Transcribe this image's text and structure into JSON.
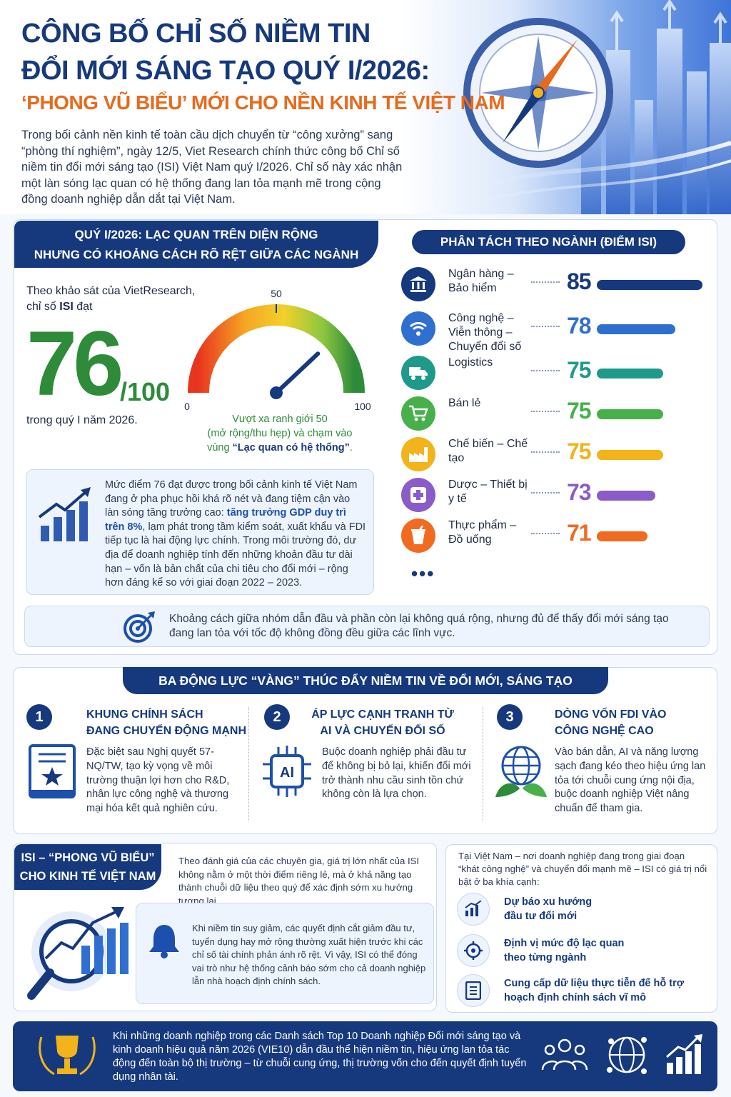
{
  "header": {
    "title_line1": "CÔNG BỐ CHỈ SỐ NIỀM TIN",
    "title_line2": "ĐỔI MỚI SÁNG TẠO QUÝ I/2026:",
    "title_line3": "‘PHONG VŨ BIỂU’ MỚI CHO NỀN KINH TẾ VIỆT NAM",
    "intro": "Trong bối cảnh nền kinh tế toàn cầu dịch chuyển từ “công xưởng” sang “phòng thí nghiệm”, ngày 12/5, Viet Research chính thức công bố Chỉ số niềm tin đổi mới sáng tạo (ISI) Việt Nam quý I/2026. Chỉ số này xác nhận một làn sóng lạc quan có hệ thống đang lan tỏa mạnh mẽ trong cộng đồng doanh nghiệp dẫn dắt tại Việt Nam."
  },
  "section1": {
    "banner_line1": "QUÝ I/2026: LẠC QUAN TRÊN DIỆN RỘNG",
    "banner_line2": "NHƯNG CÓ KHOẢNG CÁCH RÕ RỆT GIỮA CÁC NGÀNH",
    "survey_label_1": "Theo khảo sát của VietResearch,",
    "survey_label_2_prefix": "chỉ số ",
    "survey_label_2_bold": "ISI",
    "survey_label_2_suffix": " đạt",
    "score": "76",
    "score_max": "/100",
    "period": "trong quý I năm 2026.",
    "gauge": {
      "value": 76,
      "min_label": "0",
      "mid_label": "50",
      "max_label": "100",
      "note_1": "Vượt xa ranh giới 50",
      "note_2": "(mở rộng/thu hẹp) và chạm vào",
      "note_3_prefix": "vùng ",
      "note_3_bold": "“Lạc quan có hệ thống”",
      "note_3_suffix": "."
    },
    "info": {
      "part1": "Mức điểm 76 đạt được trong bối cảnh kinh tế Việt Nam đang ở pha phục hồi khá rõ nét và đang tiệm cận vào làn sóng tăng trưởng cao: ",
      "highlight": "tăng trưởng GDP duy trì trên 8%",
      "part2": ", lạm phát trong tầm kiểm soát, xuất khẩu và FDI tiếp tục là hai động lực chính. Trong môi trường đó, dư địa để doanh nghiệp tính đến những khoản đầu tư dài hạn – vốn là bản chất của chi tiêu cho đổi mới – rộng hơn đáng kể so với giai đoạn 2022 – 2023."
    },
    "sector_banner": "PHÂN TÁCH THEO NGÀNH (ĐIỂM ISI)",
    "sectors": [
      {
        "name": "Ngân hàng – Bảo hiểm",
        "value": 85,
        "color": "#16397e",
        "icon": "bank-icon"
      },
      {
        "name": "Công nghệ – Viễn thông – Chuyển đổi số",
        "value": 78,
        "color": "#2f6fd0",
        "icon": "wifi-icon"
      },
      {
        "name": "Logistics",
        "value": 75,
        "color": "#1f9a8a",
        "icon": "truck-icon"
      },
      {
        "name": "Bán lẻ",
        "value": 75,
        "color": "#47b04a",
        "icon": "cart-icon"
      },
      {
        "name": "Chế biến – Chế tạo",
        "value": 75,
        "color": "#f2b31b",
        "icon": "factory-icon"
      },
      {
        "name": "Dược – Thiết bị y tế",
        "value": 73,
        "color": "#8a5cc9",
        "icon": "medical-icon"
      },
      {
        "name": "Thực phẩm – Đồ uống",
        "value": 71,
        "color": "#f26a1f",
        "icon": "drink-icon"
      }
    ],
    "ellipsis": "•••",
    "footnote": "Khoảng cách giữa nhóm dẫn đầu và phần còn lại không quá rộng, nhưng đủ để thấy đổi mới sáng tạo đang lan tỏa với tốc độ không đồng đều giữa các lĩnh vực."
  },
  "section2": {
    "banner": "BA ĐỘNG LỰC “VÀNG” THÚC ĐẨY NIỀM TIN VỀ ĐỔI MỚI, SÁNG TẠO",
    "drivers": [
      {
        "num": "1",
        "title_1": "KHUNG CHÍNH SÁCH",
        "title_2": "ĐANG CHUYỂN ĐỘNG MẠNH",
        "body": "Đặc biệt sau Nghị quyết 57-NQ/TW, tạo kỳ vọng về môi trường thuận lợi hơn cho R&D, nhân lực công nghệ và thương mại hóa kết quả nghiên cứu."
      },
      {
        "num": "2",
        "title_1": "ÁP LỰC CẠNH TRANH TỪ",
        "title_2": "AI VÀ CHUYỂN ĐỔI SỐ",
        "body": "Buộc doanh nghiệp phải đầu tư để không bị bỏ lại, khiến đổi mới trở thành nhu cầu sinh tồn chứ không còn là lựa chọn."
      },
      {
        "num": "3",
        "title_1": "DÒNG VỐN FDI VÀO",
        "title_2": "CÔNG NGHỆ CAO",
        "body": "Vào bán dẫn, AI và năng lượng sạch đang kéo theo hiệu ứng lan tỏa tới chuỗi cung ứng nội địa, buộc doanh nghiệp Việt nâng chuẩn để tham gia."
      }
    ],
    "ai_chip_label": "AI"
  },
  "section3": {
    "banner_line1": "ISI – “PHONG VŨ BIỂU”",
    "banner_line2": "CHO KINH TẾ VIỆT NAM",
    "text": "Theo đánh giá của các chuyên gia, giá trị lớn nhất của ISI không nằm ở một thời điểm riêng lẻ, mà ở khả năng tạo thành chuỗi dữ liệu theo quý để xác định sớm xu hướng tương lai.",
    "bell_text": "Khi niềm tin suy giảm, các quyết định cắt giảm đầu tư, tuyển dụng hay mở rộng thường xuất hiện trước khi các chỉ số tài chính phản ánh rõ rệt. Vì vậy, ISI có thể đóng vai trò như hệ thống cảnh báo sớm cho cả doanh nghiệp lẫn nhà hoạch định chính sách.",
    "right_intro": "Tại Việt Nam – nơi doanh nghiệp đang trong giai đoạn “khát công nghệ” và chuyển đổi mạnh mẽ – ISI có giá trị nổi bật ở ba khía cạnh:",
    "features": [
      {
        "line1": "Dự báo xu hướng",
        "line2": "đầu tư đổi mới"
      },
      {
        "line1": "Định vị mức độ lạc quan",
        "line2": "theo từng ngành"
      },
      {
        "line1": "Cung cấp dữ liệu thực tiễn để hỗ trợ",
        "line2": "hoạch định chính sách vĩ mô"
      }
    ]
  },
  "bottom": {
    "text": "Khi những doanh nghiệp trong các Danh sách Top 10 Doanh nghiệp Đổi mới sáng tạo và kinh doanh hiệu quả năm 2026 (VIE10) dẫn đầu thể hiện niềm tin, hiệu ứng lan tỏa tác động đến toàn bộ thị trường – từ chuỗi cung ứng, thị trường vốn cho đến quyết định tuyển dụng nhân tài."
  }
}
